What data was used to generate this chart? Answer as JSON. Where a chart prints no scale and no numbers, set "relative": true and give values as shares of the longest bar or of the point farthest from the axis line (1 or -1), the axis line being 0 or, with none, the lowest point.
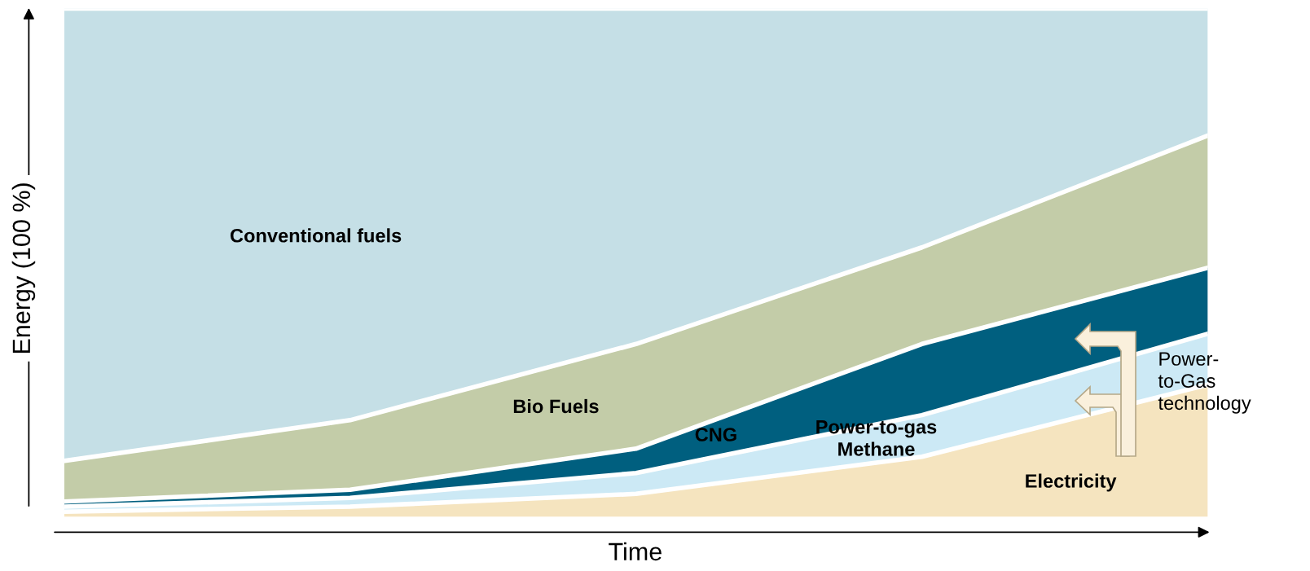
{
  "chart_data": {
    "type": "area",
    "stacked": true,
    "relative": true,
    "xlabel": "Time",
    "ylabel": "Energy (100 %)",
    "categories": [
      null,
      null,
      null,
      null,
      null
    ],
    "series": [
      {
        "name": "Electricity",
        "color": "#f5e4bf",
        "values": [
          0.01,
          0.02,
          0.045,
          0.118,
          0.26
        ]
      },
      {
        "name": "Power-to-gas\nMethane",
        "color": "#cce9f5",
        "values": [
          0.01,
          0.017,
          0.041,
          0.082,
          0.1
        ]
      },
      {
        "name": "CNG",
        "color": "#005f7f",
        "values": [
          0.01,
          0.016,
          0.048,
          0.14,
          0.13
        ]
      },
      {
        "name": "Bio Fuels",
        "color": "#c3cca8",
        "values": [
          0.08,
          0.137,
          0.206,
          0.19,
          0.26
        ]
      },
      {
        "name": "Conventional fuels",
        "color": "#c5dfe6",
        "values": [
          0.89,
          0.81,
          0.66,
          0.47,
          0.25
        ]
      }
    ],
    "annotations": [
      "Power-\nto-Gas\ntechnology"
    ],
    "legend": false
  }
}
